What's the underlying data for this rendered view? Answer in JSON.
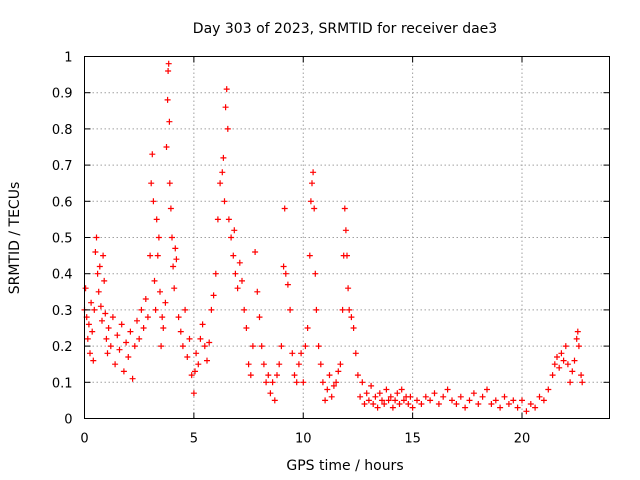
{
  "chart_data": {
    "type": "scatter",
    "title": "Day 303 of 2023, SRMTID for receiver dae3",
    "xlabel": "GPS time / hours",
    "ylabel": "SRMTID / TECUs",
    "xlim": [
      0,
      24
    ],
    "ylim": [
      0,
      1
    ],
    "xticks": [
      0,
      5,
      10,
      15,
      20
    ],
    "xtick_labels": [
      "0",
      "5",
      "10",
      "15",
      "20"
    ],
    "yticks": [
      0,
      0.1,
      0.2,
      0.3,
      0.4,
      0.5,
      0.6,
      0.7,
      0.8,
      0.9,
      1
    ],
    "ytick_labels": [
      "0",
      "0.1",
      "0.2",
      "0.3",
      "0.4",
      "0.5",
      "0.6",
      "0.7",
      "0.8",
      "0.9",
      "1"
    ],
    "grid": true,
    "marker": "+",
    "color": "#ff0000",
    "series": [
      {
        "name": "SRMTID",
        "points": [
          [
            0.0,
            0.3
          ],
          [
            0.05,
            0.36
          ],
          [
            0.1,
            0.28
          ],
          [
            0.15,
            0.22
          ],
          [
            0.2,
            0.26
          ],
          [
            0.25,
            0.18
          ],
          [
            0.3,
            0.32
          ],
          [
            0.35,
            0.24
          ],
          [
            0.4,
            0.16
          ],
          [
            0.45,
            0.3
          ],
          [
            0.5,
            0.46
          ],
          [
            0.55,
            0.5
          ],
          [
            0.6,
            0.4
          ],
          [
            0.65,
            0.35
          ],
          [
            0.7,
            0.42
          ],
          [
            0.75,
            0.31
          ],
          [
            0.8,
            0.27
          ],
          [
            0.85,
            0.45
          ],
          [
            0.9,
            0.38
          ],
          [
            0.95,
            0.29
          ],
          [
            1.0,
            0.22
          ],
          [
            1.05,
            0.18
          ],
          [
            1.1,
            0.25
          ],
          [
            1.2,
            0.2
          ],
          [
            1.3,
            0.28
          ],
          [
            1.4,
            0.15
          ],
          [
            1.5,
            0.23
          ],
          [
            1.6,
            0.19
          ],
          [
            1.7,
            0.26
          ],
          [
            1.8,
            0.13
          ],
          [
            1.9,
            0.21
          ],
          [
            2.0,
            0.17
          ],
          [
            2.1,
            0.24
          ],
          [
            2.2,
            0.11
          ],
          [
            2.3,
            0.2
          ],
          [
            2.4,
            0.27
          ],
          [
            2.5,
            0.22
          ],
          [
            2.6,
            0.3
          ],
          [
            2.7,
            0.25
          ],
          [
            2.8,
            0.33
          ],
          [
            2.9,
            0.28
          ],
          [
            3.0,
            0.45
          ],
          [
            3.05,
            0.65
          ],
          [
            3.1,
            0.73
          ],
          [
            3.15,
            0.6
          ],
          [
            3.2,
            0.38
          ],
          [
            3.25,
            0.3
          ],
          [
            3.3,
            0.55
          ],
          [
            3.35,
            0.45
          ],
          [
            3.4,
            0.5
          ],
          [
            3.45,
            0.35
          ],
          [
            3.5,
            0.2
          ],
          [
            3.55,
            0.28
          ],
          [
            3.6,
            0.25
          ],
          [
            3.7,
            0.32
          ],
          [
            3.75,
            0.75
          ],
          [
            3.8,
            0.88
          ],
          [
            3.82,
            0.96
          ],
          [
            3.85,
            0.98
          ],
          [
            3.88,
            0.82
          ],
          [
            3.9,
            0.65
          ],
          [
            3.95,
            0.58
          ],
          [
            4.0,
            0.5
          ],
          [
            4.05,
            0.42
          ],
          [
            4.1,
            0.36
          ],
          [
            4.15,
            0.47
          ],
          [
            4.2,
            0.44
          ],
          [
            4.3,
            0.28
          ],
          [
            4.4,
            0.24
          ],
          [
            4.5,
            0.2
          ],
          [
            4.6,
            0.3
          ],
          [
            4.7,
            0.17
          ],
          [
            4.8,
            0.22
          ],
          [
            4.9,
            0.12
          ],
          [
            5.0,
            0.07
          ],
          [
            5.05,
            0.13
          ],
          [
            5.1,
            0.18
          ],
          [
            5.2,
            0.15
          ],
          [
            5.3,
            0.22
          ],
          [
            5.4,
            0.26
          ],
          [
            5.5,
            0.2
          ],
          [
            5.6,
            0.16
          ],
          [
            5.7,
            0.21
          ],
          [
            5.8,
            0.3
          ],
          [
            5.9,
            0.34
          ],
          [
            6.0,
            0.4
          ],
          [
            6.1,
            0.55
          ],
          [
            6.2,
            0.65
          ],
          [
            6.3,
            0.68
          ],
          [
            6.35,
            0.72
          ],
          [
            6.4,
            0.6
          ],
          [
            6.45,
            0.86
          ],
          [
            6.5,
            0.91
          ],
          [
            6.55,
            0.8
          ],
          [
            6.6,
            0.55
          ],
          [
            6.7,
            0.5
          ],
          [
            6.8,
            0.45
          ],
          [
            6.85,
            0.52
          ],
          [
            6.9,
            0.4
          ],
          [
            7.0,
            0.36
          ],
          [
            7.1,
            0.43
          ],
          [
            7.2,
            0.38
          ],
          [
            7.3,
            0.3
          ],
          [
            7.4,
            0.25
          ],
          [
            7.5,
            0.15
          ],
          [
            7.6,
            0.12
          ],
          [
            7.7,
            0.2
          ],
          [
            7.8,
            0.46
          ],
          [
            7.9,
            0.35
          ],
          [
            8.0,
            0.28
          ],
          [
            8.1,
            0.2
          ],
          [
            8.2,
            0.15
          ],
          [
            8.3,
            0.1
          ],
          [
            8.4,
            0.12
          ],
          [
            8.5,
            0.07
          ],
          [
            8.6,
            0.1
          ],
          [
            8.7,
            0.05
          ],
          [
            8.8,
            0.12
          ],
          [
            8.9,
            0.15
          ],
          [
            9.0,
            0.2
          ],
          [
            9.1,
            0.42
          ],
          [
            9.15,
            0.58
          ],
          [
            9.2,
            0.4
          ],
          [
            9.3,
            0.37
          ],
          [
            9.4,
            0.3
          ],
          [
            9.5,
            0.18
          ],
          [
            9.6,
            0.12
          ],
          [
            9.7,
            0.1
          ],
          [
            9.8,
            0.15
          ],
          [
            9.9,
            0.18
          ],
          [
            10.0,
            0.1
          ],
          [
            10.1,
            0.2
          ],
          [
            10.2,
            0.25
          ],
          [
            10.3,
            0.45
          ],
          [
            10.35,
            0.6
          ],
          [
            10.4,
            0.65
          ],
          [
            10.45,
            0.68
          ],
          [
            10.5,
            0.58
          ],
          [
            10.55,
            0.4
          ],
          [
            10.6,
            0.3
          ],
          [
            10.7,
            0.2
          ],
          [
            10.8,
            0.15
          ],
          [
            10.9,
            0.1
          ],
          [
            11.0,
            0.05
          ],
          [
            11.1,
            0.08
          ],
          [
            11.2,
            0.12
          ],
          [
            11.3,
            0.06
          ],
          [
            11.4,
            0.09
          ],
          [
            11.5,
            0.1
          ],
          [
            11.6,
            0.13
          ],
          [
            11.7,
            0.15
          ],
          [
            11.8,
            0.3
          ],
          [
            11.85,
            0.45
          ],
          [
            11.9,
            0.58
          ],
          [
            11.95,
            0.52
          ],
          [
            12.0,
            0.45
          ],
          [
            12.05,
            0.36
          ],
          [
            12.1,
            0.3
          ],
          [
            12.2,
            0.28
          ],
          [
            12.3,
            0.25
          ],
          [
            12.4,
            0.18
          ],
          [
            12.5,
            0.12
          ],
          [
            12.6,
            0.06
          ],
          [
            12.7,
            0.1
          ],
          [
            12.8,
            0.04
          ],
          [
            12.9,
            0.07
          ],
          [
            13.0,
            0.05
          ],
          [
            13.1,
            0.09
          ],
          [
            13.2,
            0.04
          ],
          [
            13.3,
            0.06
          ],
          [
            13.4,
            0.03
          ],
          [
            13.5,
            0.07
          ],
          [
            13.6,
            0.05
          ],
          [
            13.7,
            0.04
          ],
          [
            13.8,
            0.08
          ],
          [
            13.9,
            0.05
          ],
          [
            14.0,
            0.06
          ],
          [
            14.1,
            0.03
          ],
          [
            14.2,
            0.05
          ],
          [
            14.3,
            0.07
          ],
          [
            14.4,
            0.04
          ],
          [
            14.5,
            0.08
          ],
          [
            14.6,
            0.05
          ],
          [
            14.7,
            0.06
          ],
          [
            14.8,
            0.04
          ],
          [
            14.9,
            0.06
          ],
          [
            15.0,
            0.03
          ],
          [
            15.2,
            0.05
          ],
          [
            15.4,
            0.04
          ],
          [
            15.6,
            0.06
          ],
          [
            15.8,
            0.05
          ],
          [
            16.0,
            0.07
          ],
          [
            16.2,
            0.04
          ],
          [
            16.4,
            0.06
          ],
          [
            16.6,
            0.08
          ],
          [
            16.8,
            0.05
          ],
          [
            17.0,
            0.04
          ],
          [
            17.2,
            0.06
          ],
          [
            17.4,
            0.03
          ],
          [
            17.6,
            0.05
          ],
          [
            17.8,
            0.07
          ],
          [
            18.0,
            0.04
          ],
          [
            18.2,
            0.06
          ],
          [
            18.4,
            0.08
          ],
          [
            18.6,
            0.04
          ],
          [
            18.8,
            0.05
          ],
          [
            19.0,
            0.03
          ],
          [
            19.2,
            0.06
          ],
          [
            19.4,
            0.04
          ],
          [
            19.6,
            0.05
          ],
          [
            19.8,
            0.03
          ],
          [
            20.0,
            0.05
          ],
          [
            20.2,
            0.02
          ],
          [
            20.4,
            0.04
          ],
          [
            20.6,
            0.03
          ],
          [
            20.8,
            0.06
          ],
          [
            21.0,
            0.05
          ],
          [
            21.2,
            0.08
          ],
          [
            21.4,
            0.12
          ],
          [
            21.5,
            0.15
          ],
          [
            21.6,
            0.17
          ],
          [
            21.7,
            0.14
          ],
          [
            21.8,
            0.18
          ],
          [
            21.9,
            0.16
          ],
          [
            22.0,
            0.2
          ],
          [
            22.1,
            0.15
          ],
          [
            22.2,
            0.1
          ],
          [
            22.3,
            0.13
          ],
          [
            22.4,
            0.16
          ],
          [
            22.5,
            0.22
          ],
          [
            22.55,
            0.24
          ],
          [
            22.6,
            0.2
          ],
          [
            22.7,
            0.12
          ],
          [
            22.75,
            0.1
          ]
        ]
      }
    ]
  }
}
